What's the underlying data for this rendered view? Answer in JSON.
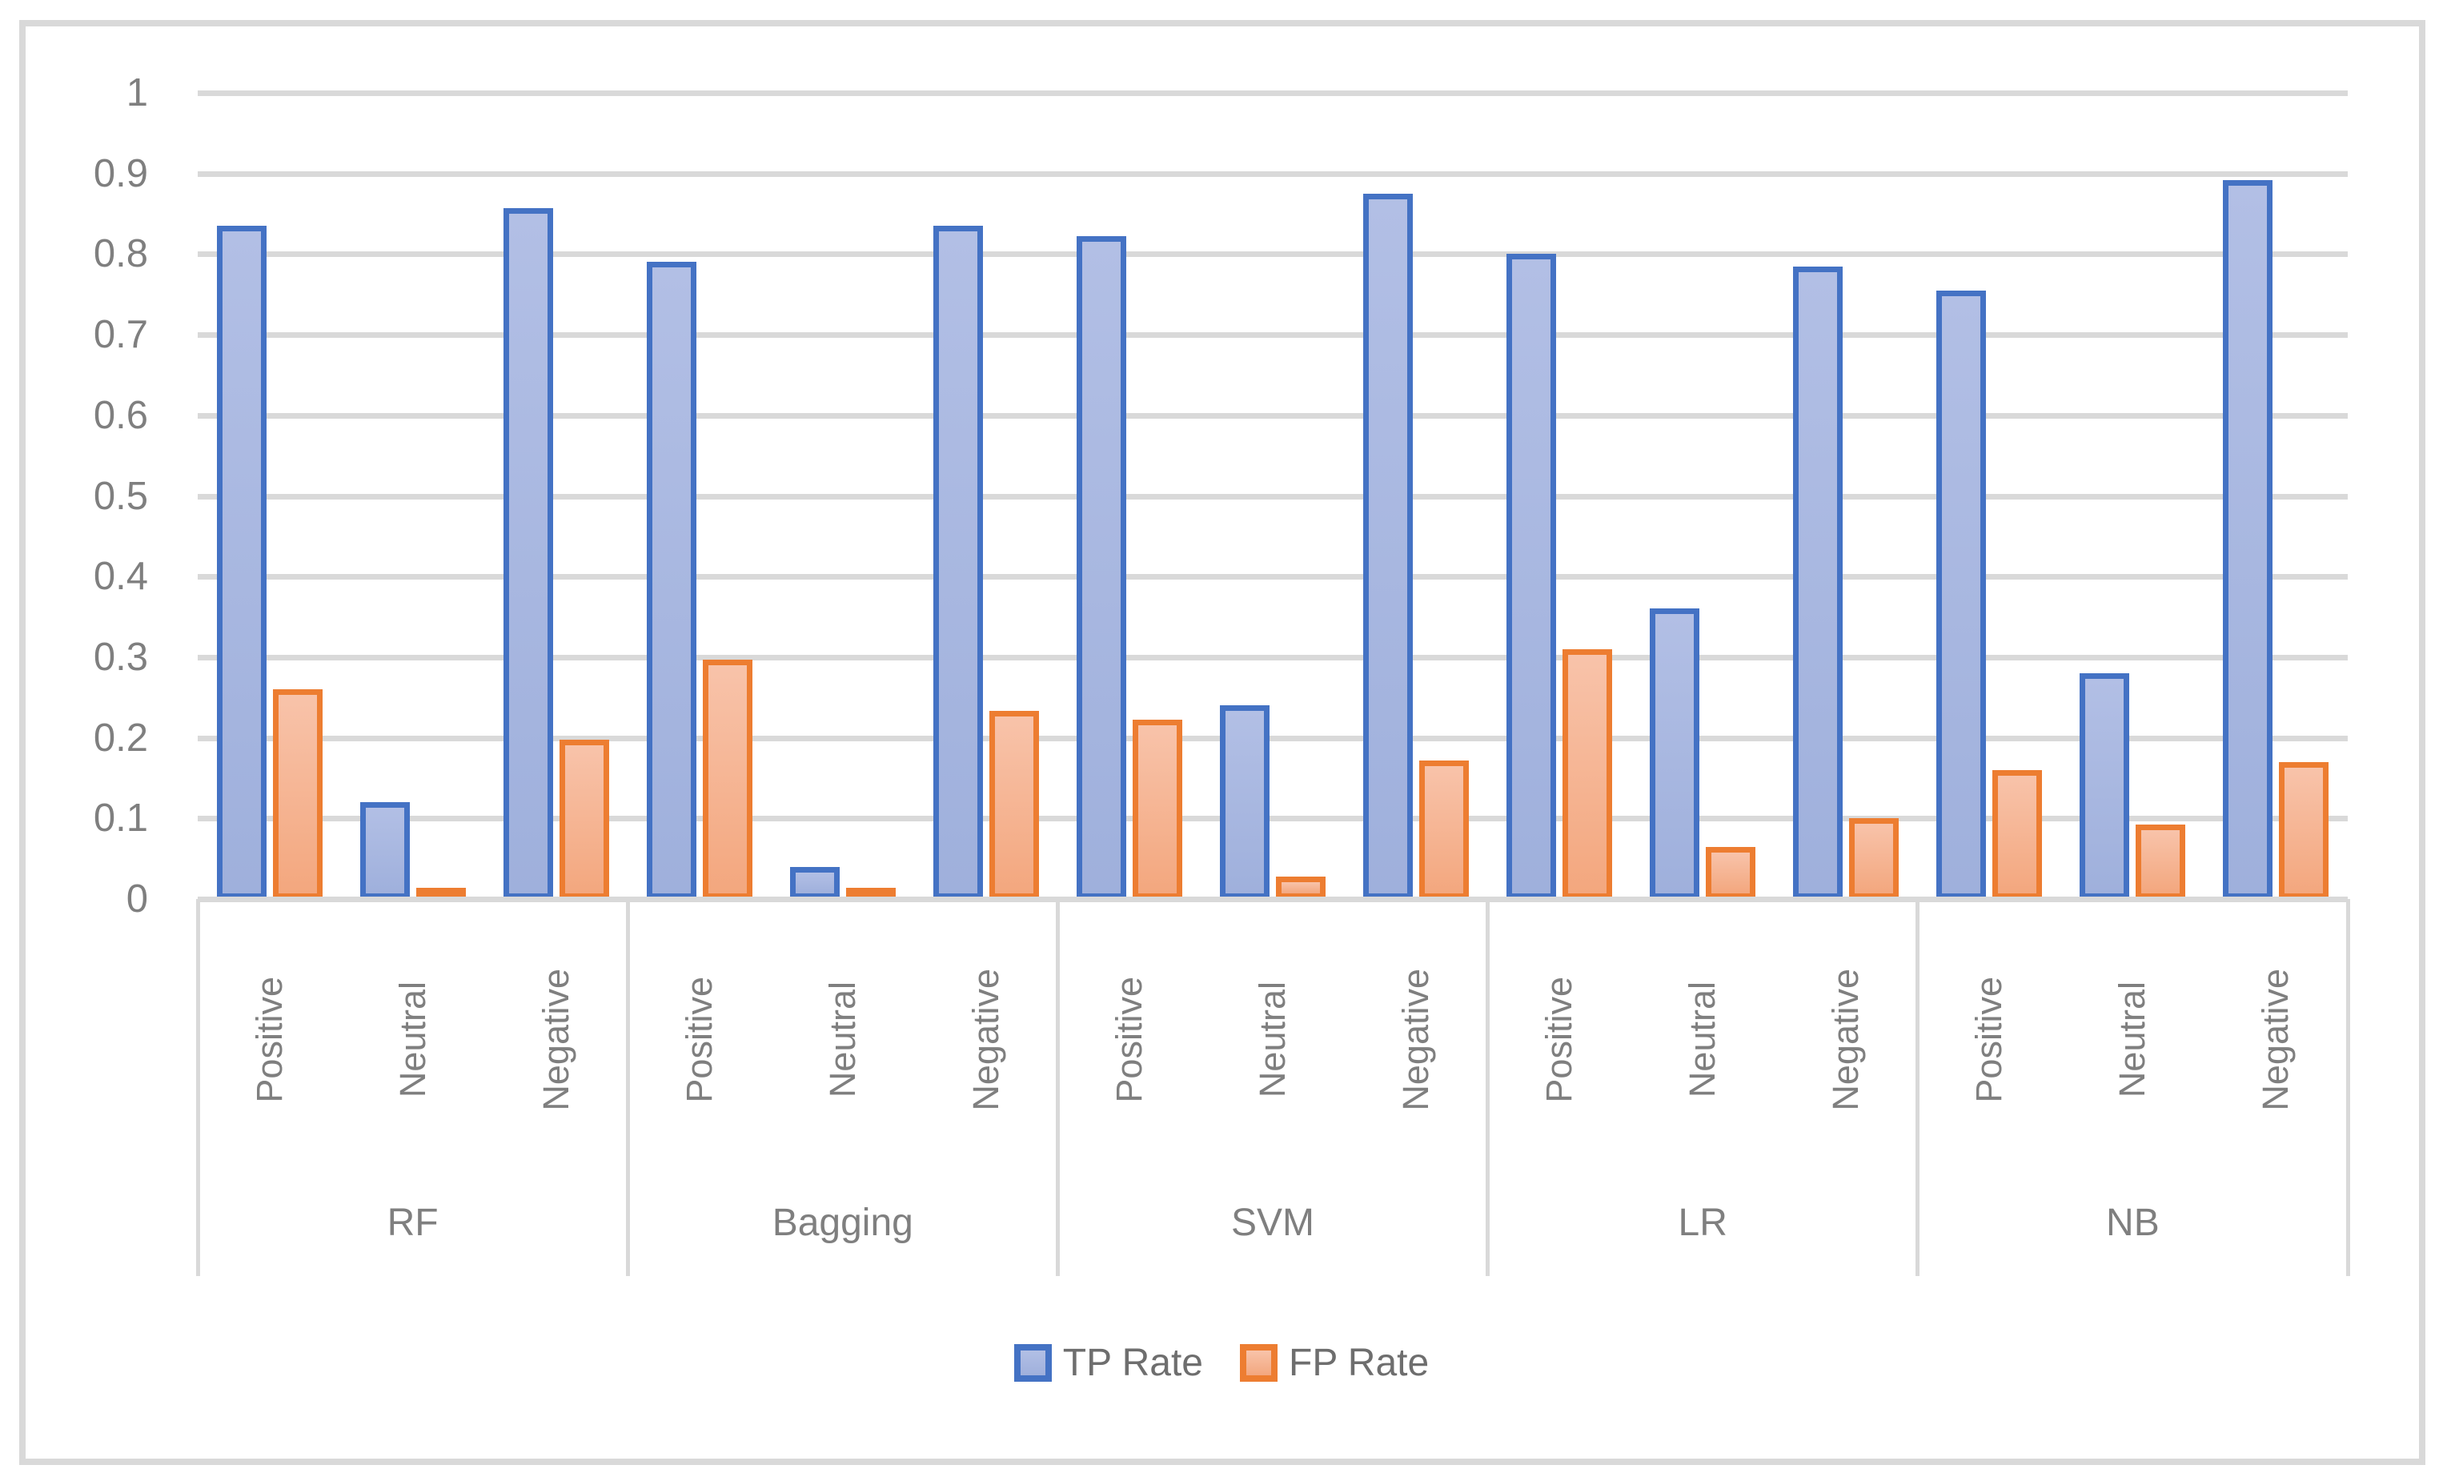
{
  "chart_data": {
    "type": "bar",
    "title": "",
    "xlabel": "",
    "ylabel": "",
    "groups": [
      "RF",
      "Bagging",
      "SVM",
      "LR",
      "NB"
    ],
    "categories": [
      "Positive",
      "Neutral",
      "Negative"
    ],
    "series": [
      {
        "name": "TP Rate",
        "border_color": "#4472C4",
        "fill_top": "#B2BFE5",
        "fill_bottom": "#9FB0DC",
        "values": [
          0.835,
          0.12,
          0.857,
          0.79,
          0.04,
          0.835,
          0.822,
          0.24,
          0.875,
          0.8,
          0.36,
          0.785,
          0.755,
          0.28,
          0.892
        ]
      },
      {
        "name": "FP Rate",
        "border_color": "#ED7D31",
        "fill_top": "#F8C3AA",
        "fill_bottom": "#F3A77E",
        "values": [
          0.26,
          0.008,
          0.198,
          0.297,
          0.008,
          0.233,
          0.222,
          0.028,
          0.172,
          0.31,
          0.065,
          0.1,
          0.16,
          0.092,
          0.17
        ]
      }
    ],
    "y_axis": {
      "min": 0,
      "max": 1,
      "ticks": [
        "1",
        "0.9",
        "0.8",
        "0.7",
        "0.6",
        "0.5",
        "0.4",
        "0.3",
        "0.2",
        "0.1",
        "0"
      ]
    },
    "grid": true,
    "gridline_color": "#D9D9D9",
    "axis_text_color": "#7F7F7F",
    "legend_text_color": "#6E6E6E",
    "legend_position": "bottom"
  }
}
